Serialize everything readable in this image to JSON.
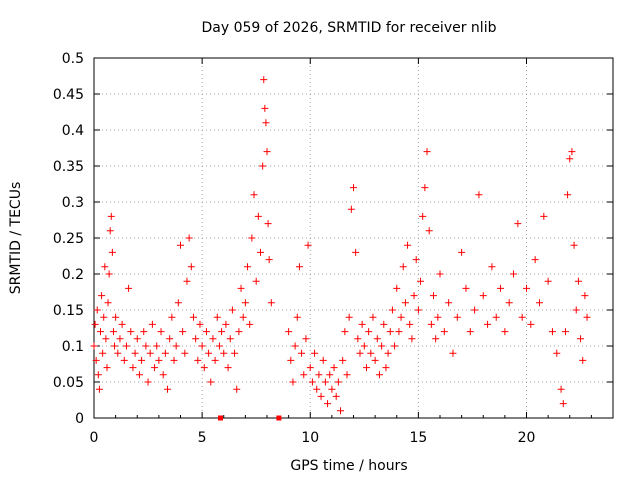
{
  "chart_data": {
    "type": "scatter",
    "title": "Day 059 of 2026, SRMTID for receiver nlib",
    "xlabel": "GPS time / hours",
    "ylabel": "SRMTID / TECUs",
    "xlim": [
      0,
      24
    ],
    "ylim": [
      0,
      0.5
    ],
    "xticks": [
      0,
      5,
      10,
      15,
      20
    ],
    "xtick_labels": [
      "0",
      "5",
      "10",
      "15",
      "20"
    ],
    "yticks": [
      0,
      0.05,
      0.1,
      0.15,
      0.2,
      0.25,
      0.3,
      0.35,
      0.4,
      0.45,
      0.5
    ],
    "ytick_labels": [
      "0",
      "0.05",
      "0.1",
      "0.15",
      "0.2",
      "0.25",
      "0.3",
      "0.35",
      "0.4",
      "0.45",
      "0.5"
    ],
    "grid": true,
    "legend": "none",
    "marker": "plus",
    "color": "#ff0000",
    "gap_markers_x": [
      5.85,
      8.55
    ],
    "series": [
      {
        "points": [
          [
            0.0,
            0.1
          ],
          [
            0.05,
            0.13
          ],
          [
            0.1,
            0.08
          ],
          [
            0.15,
            0.15
          ],
          [
            0.2,
            0.06
          ],
          [
            0.25,
            0.04
          ],
          [
            0.3,
            0.12
          ],
          [
            0.35,
            0.17
          ],
          [
            0.4,
            0.09
          ],
          [
            0.45,
            0.14
          ],
          [
            0.5,
            0.21
          ],
          [
            0.55,
            0.11
          ],
          [
            0.6,
            0.07
          ],
          [
            0.65,
            0.16
          ],
          [
            0.7,
            0.2
          ],
          [
            0.75,
            0.26
          ],
          [
            0.8,
            0.28
          ],
          [
            0.85,
            0.23
          ],
          [
            0.9,
            0.12
          ],
          [
            0.95,
            0.1
          ],
          [
            1.0,
            0.14
          ],
          [
            1.1,
            0.09
          ],
          [
            1.2,
            0.11
          ],
          [
            1.3,
            0.13
          ],
          [
            1.4,
            0.08
          ],
          [
            1.5,
            0.1
          ],
          [
            1.6,
            0.18
          ],
          [
            1.7,
            0.12
          ],
          [
            1.8,
            0.07
          ],
          [
            1.9,
            0.09
          ],
          [
            2.0,
            0.11
          ],
          [
            2.1,
            0.06
          ],
          [
            2.2,
            0.08
          ],
          [
            2.3,
            0.12
          ],
          [
            2.4,
            0.1
          ],
          [
            2.5,
            0.05
          ],
          [
            2.6,
            0.09
          ],
          [
            2.7,
            0.13
          ],
          [
            2.8,
            0.07
          ],
          [
            2.9,
            0.1
          ],
          [
            3.0,
            0.08
          ],
          [
            3.1,
            0.12
          ],
          [
            3.2,
            0.06
          ],
          [
            3.3,
            0.09
          ],
          [
            3.4,
            0.04
          ],
          [
            3.5,
            0.11
          ],
          [
            3.6,
            0.14
          ],
          [
            3.7,
            0.08
          ],
          [
            3.8,
            0.1
          ],
          [
            3.9,
            0.16
          ],
          [
            4.0,
            0.24
          ],
          [
            4.1,
            0.12
          ],
          [
            4.2,
            0.09
          ],
          [
            4.3,
            0.19
          ],
          [
            4.4,
            0.25
          ],
          [
            4.5,
            0.21
          ],
          [
            4.6,
            0.14
          ],
          [
            4.7,
            0.11
          ],
          [
            4.8,
            0.08
          ],
          [
            4.9,
            0.13
          ],
          [
            5.0,
            0.1
          ],
          [
            5.1,
            0.07
          ],
          [
            5.2,
            0.12
          ],
          [
            5.3,
            0.09
          ],
          [
            5.4,
            0.05
          ],
          [
            5.5,
            0.11
          ],
          [
            5.6,
            0.08
          ],
          [
            5.7,
            0.14
          ],
          [
            5.8,
            0.1
          ],
          [
            5.9,
            0.12
          ],
          [
            6.0,
            0.09
          ],
          [
            6.1,
            0.13
          ],
          [
            6.2,
            0.07
          ],
          [
            6.3,
            0.11
          ],
          [
            6.4,
            0.15
          ],
          [
            6.5,
            0.09
          ],
          [
            6.6,
            0.04
          ],
          [
            6.7,
            0.12
          ],
          [
            6.8,
            0.18
          ],
          [
            6.9,
            0.14
          ],
          [
            7.0,
            0.16
          ],
          [
            7.1,
            0.21
          ],
          [
            7.2,
            0.13
          ],
          [
            7.3,
            0.25
          ],
          [
            7.4,
            0.31
          ],
          [
            7.5,
            0.19
          ],
          [
            7.6,
            0.28
          ],
          [
            7.7,
            0.23
          ],
          [
            7.8,
            0.35
          ],
          [
            7.85,
            0.47
          ],
          [
            7.9,
            0.43
          ],
          [
            7.95,
            0.41
          ],
          [
            8.0,
            0.37
          ],
          [
            8.05,
            0.27
          ],
          [
            8.1,
            0.22
          ],
          [
            8.2,
            0.16
          ],
          [
            9.0,
            0.12
          ],
          [
            9.1,
            0.08
          ],
          [
            9.2,
            0.05
          ],
          [
            9.3,
            0.1
          ],
          [
            9.4,
            0.14
          ],
          [
            9.5,
            0.21
          ],
          [
            9.6,
            0.09
          ],
          [
            9.7,
            0.06
          ],
          [
            9.8,
            0.11
          ],
          [
            9.9,
            0.24
          ],
          [
            10.0,
            0.07
          ],
          [
            10.1,
            0.05
          ],
          [
            10.2,
            0.09
          ],
          [
            10.3,
            0.04
          ],
          [
            10.4,
            0.06
          ],
          [
            10.5,
            0.03
          ],
          [
            10.6,
            0.08
          ],
          [
            10.7,
            0.05
          ],
          [
            10.8,
            0.02
          ],
          [
            10.9,
            0.06
          ],
          [
            11.0,
            0.04
          ],
          [
            11.1,
            0.07
          ],
          [
            11.2,
            0.03
          ],
          [
            11.3,
            0.05
          ],
          [
            11.4,
            0.01
          ],
          [
            11.5,
            0.08
          ],
          [
            11.6,
            0.12
          ],
          [
            11.7,
            0.06
          ],
          [
            11.8,
            0.14
          ],
          [
            11.9,
            0.29
          ],
          [
            12.0,
            0.32
          ],
          [
            12.1,
            0.23
          ],
          [
            12.2,
            0.11
          ],
          [
            12.3,
            0.09
          ],
          [
            12.4,
            0.13
          ],
          [
            12.5,
            0.1
          ],
          [
            12.6,
            0.07
          ],
          [
            12.7,
            0.12
          ],
          [
            12.8,
            0.09
          ],
          [
            12.9,
            0.14
          ],
          [
            13.0,
            0.08
          ],
          [
            13.1,
            0.11
          ],
          [
            13.2,
            0.06
          ],
          [
            13.3,
            0.1
          ],
          [
            13.4,
            0.13
          ],
          [
            13.5,
            0.07
          ],
          [
            13.6,
            0.09
          ],
          [
            13.7,
            0.12
          ],
          [
            13.8,
            0.15
          ],
          [
            13.9,
            0.1
          ],
          [
            14.0,
            0.18
          ],
          [
            14.1,
            0.12
          ],
          [
            14.2,
            0.14
          ],
          [
            14.3,
            0.21
          ],
          [
            14.4,
            0.16
          ],
          [
            14.5,
            0.24
          ],
          [
            14.6,
            0.13
          ],
          [
            14.7,
            0.11
          ],
          [
            14.8,
            0.17
          ],
          [
            14.9,
            0.22
          ],
          [
            15.0,
            0.15
          ],
          [
            15.1,
            0.19
          ],
          [
            15.2,
            0.28
          ],
          [
            15.3,
            0.32
          ],
          [
            15.4,
            0.37
          ],
          [
            15.5,
            0.26
          ],
          [
            15.6,
            0.13
          ],
          [
            15.7,
            0.17
          ],
          [
            15.8,
            0.11
          ],
          [
            15.9,
            0.14
          ],
          [
            16.0,
            0.2
          ],
          [
            16.2,
            0.12
          ],
          [
            16.4,
            0.16
          ],
          [
            16.6,
            0.09
          ],
          [
            16.8,
            0.14
          ],
          [
            17.0,
            0.23
          ],
          [
            17.2,
            0.18
          ],
          [
            17.4,
            0.12
          ],
          [
            17.6,
            0.15
          ],
          [
            17.8,
            0.31
          ],
          [
            18.0,
            0.17
          ],
          [
            18.2,
            0.13
          ],
          [
            18.4,
            0.21
          ],
          [
            18.6,
            0.14
          ],
          [
            18.8,
            0.18
          ],
          [
            19.0,
            0.12
          ],
          [
            19.2,
            0.16
          ],
          [
            19.4,
            0.2
          ],
          [
            19.6,
            0.27
          ],
          [
            19.8,
            0.14
          ],
          [
            20.0,
            0.18
          ],
          [
            20.2,
            0.13
          ],
          [
            20.4,
            0.22
          ],
          [
            20.6,
            0.16
          ],
          [
            20.8,
            0.28
          ],
          [
            21.0,
            0.19
          ],
          [
            21.2,
            0.12
          ],
          [
            21.4,
            0.09
          ],
          [
            21.6,
            0.04
          ],
          [
            21.7,
            0.02
          ],
          [
            21.8,
            0.12
          ],
          [
            21.9,
            0.31
          ],
          [
            22.0,
            0.36
          ],
          [
            22.1,
            0.37
          ],
          [
            22.2,
            0.24
          ],
          [
            22.3,
            0.15
          ],
          [
            22.4,
            0.19
          ],
          [
            22.5,
            0.11
          ],
          [
            22.6,
            0.08
          ],
          [
            22.7,
            0.17
          ],
          [
            22.8,
            0.14
          ]
        ]
      }
    ]
  }
}
